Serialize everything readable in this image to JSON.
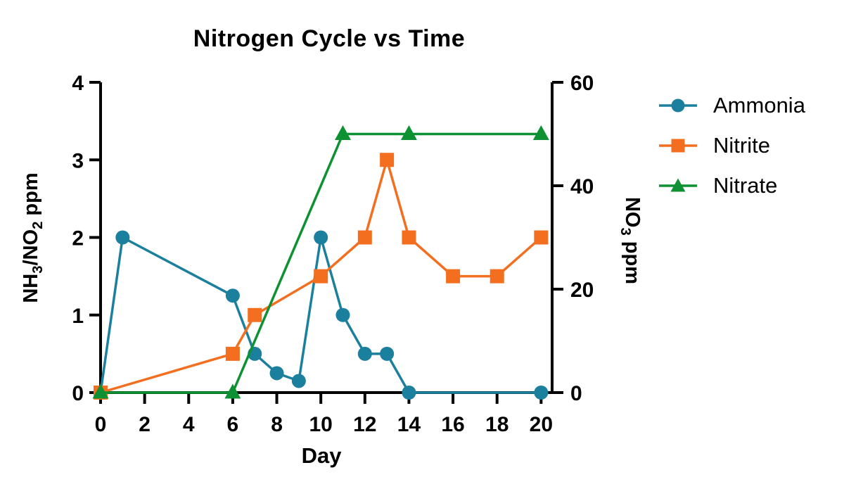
{
  "chart_data": {
    "type": "line",
    "title": "Nitrogen Cycle vs Time",
    "background_color": "#ffffff",
    "axis_color": "#000000",
    "text_color": "#000000",
    "grid": false,
    "legend_position": "right",
    "x_axis": {
      "label": "Day",
      "lim": [
        0,
        20.5
      ],
      "ticks": [
        0,
        2,
        4,
        6,
        8,
        10,
        12,
        14,
        16,
        18,
        20
      ]
    },
    "left_axis": {
      "label_plain": "NH3/NO2 ppm",
      "title_segments": [
        {
          "text": "NH"
        },
        {
          "text": "3",
          "sub": true
        },
        {
          "text": "/NO"
        },
        {
          "text": "2",
          "sub": true
        },
        {
          "text": " ppm"
        }
      ],
      "lim": [
        0,
        4
      ],
      "ticks": [
        0,
        1,
        2,
        3,
        4
      ]
    },
    "right_axis": {
      "label_plain": "NO3 ppm",
      "title_segments": [
        {
          "text": "NO"
        },
        {
          "text": "3",
          "sub": true
        },
        {
          "text": " ppm"
        }
      ],
      "lim": [
        0,
        60
      ],
      "ticks": [
        0,
        20,
        40,
        60
      ]
    },
    "series": [
      {
        "name": "Ammonia",
        "color": "#1b7f9e",
        "marker": "circle",
        "axis": "left",
        "x": [
          0,
          1,
          6,
          7,
          8,
          9,
          10,
          11,
          12,
          13,
          14,
          20
        ],
        "y": [
          0,
          2,
          1.25,
          0.5,
          0.25,
          0.15,
          2,
          1,
          0.5,
          0.5,
          0,
          0
        ]
      },
      {
        "name": "Nitrite",
        "color": "#f36f1f",
        "marker": "square",
        "axis": "left",
        "x": [
          0,
          6,
          7,
          10,
          12,
          13,
          14,
          16,
          18,
          20
        ],
        "y": [
          0,
          0.5,
          1,
          1.5,
          2,
          3,
          2,
          1.5,
          1.5,
          2
        ]
      },
      {
        "name": "Nitrate",
        "color": "#0e9132",
        "marker": "triangle",
        "axis": "right",
        "x": [
          0,
          6,
          11,
          14,
          20
        ],
        "y": [
          0,
          0,
          50,
          50,
          50
        ]
      }
    ]
  }
}
